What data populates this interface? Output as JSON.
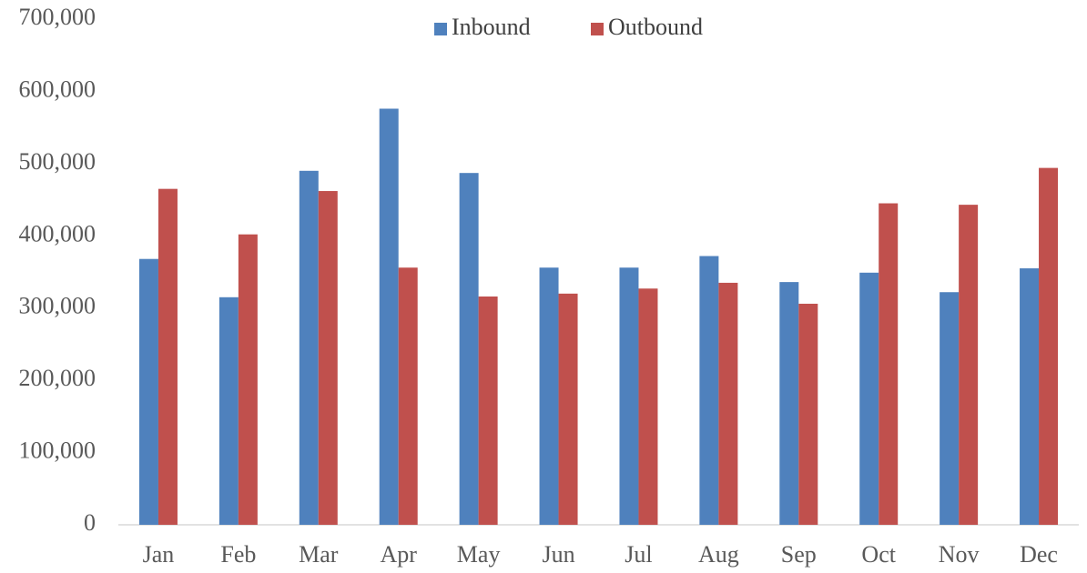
{
  "chart_data": {
    "type": "bar",
    "categories": [
      "Jan",
      "Feb",
      "Mar",
      "Apr",
      "May",
      "Jun",
      "Jul",
      "Aug",
      "Sep",
      "Oct",
      "Nov",
      "Dec"
    ],
    "series": [
      {
        "name": "Inbound",
        "color": "#4f81bd",
        "values": [
          368000,
          315000,
          490000,
          576000,
          487000,
          356000,
          356000,
          372000,
          336000,
          349000,
          322000,
          355000
        ]
      },
      {
        "name": "Outbound",
        "color": "#c0504d",
        "values": [
          465000,
          402000,
          462000,
          356000,
          316000,
          320000,
          327000,
          335000,
          306000,
          445000,
          443000,
          494000
        ]
      }
    ],
    "ylim": [
      0,
      700000
    ],
    "yticks": [
      0,
      {
        "value": 100000,
        "label": "100,000"
      },
      {
        "value": 200000,
        "label": "200,000"
      },
      {
        "value": 300000,
        "label": "300,000"
      },
      {
        "value": 400000,
        "label": "400,000"
      },
      {
        "value": 500000,
        "label": "500,000"
      },
      {
        "value": 600000,
        "label": "600,000"
      },
      {
        "value": 700000,
        "label": "700,000"
      }
    ],
    "grid": false,
    "legend": "top"
  }
}
